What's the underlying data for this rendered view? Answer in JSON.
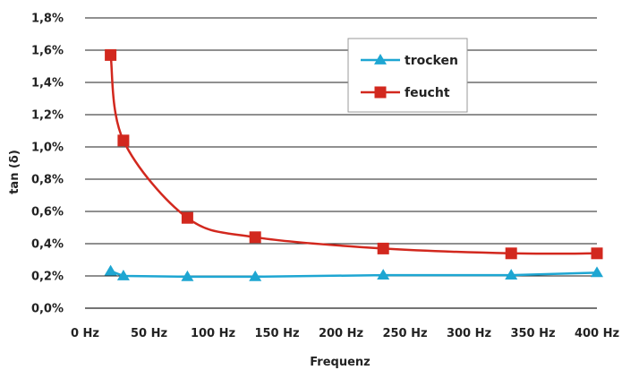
{
  "chart_data": {
    "type": "line",
    "title": "",
    "xlabel": "Frequenz",
    "ylabel": "tan (δ)",
    "xlim": [
      0,
      400
    ],
    "ylim": [
      0,
      1.8
    ],
    "x_ticks": [
      0,
      50,
      100,
      150,
      200,
      250,
      300,
      350,
      400
    ],
    "x_tick_labels": [
      "0 Hz",
      "50 Hz",
      "100 Hz",
      "150 Hz",
      "200 Hz",
      "250 Hz",
      "300 Hz",
      "350 Hz",
      "400 Hz"
    ],
    "y_ticks": [
      0,
      0.2,
      0.4,
      0.6,
      0.8,
      1.0,
      1.2,
      1.4,
      1.6,
      1.8
    ],
    "y_tick_labels": [
      "0,0%",
      "0,2%",
      "0,4%",
      "0,6%",
      "0,8%",
      "1,0%",
      "1,2%",
      "1,4%",
      "1,6%",
      "1,8%"
    ],
    "grid": true,
    "legend_position": "top-right",
    "series": [
      {
        "name": "trocken",
        "color": "#1ea6d2",
        "marker": "triangle",
        "points": [
          [
            20,
            0.23
          ],
          [
            30,
            0.2
          ],
          [
            80,
            0.195
          ],
          [
            133,
            0.195
          ],
          [
            233,
            0.205
          ],
          [
            333,
            0.205
          ],
          [
            400,
            0.22
          ]
        ]
      },
      {
        "name": "feucht",
        "color": "#d2281e",
        "marker": "square",
        "points": [
          [
            20,
            1.57
          ],
          [
            30,
            1.04
          ],
          [
            80,
            0.56
          ],
          [
            133,
            0.44
          ],
          [
            233,
            0.37
          ],
          [
            333,
            0.34
          ],
          [
            400,
            0.34
          ]
        ]
      }
    ]
  }
}
